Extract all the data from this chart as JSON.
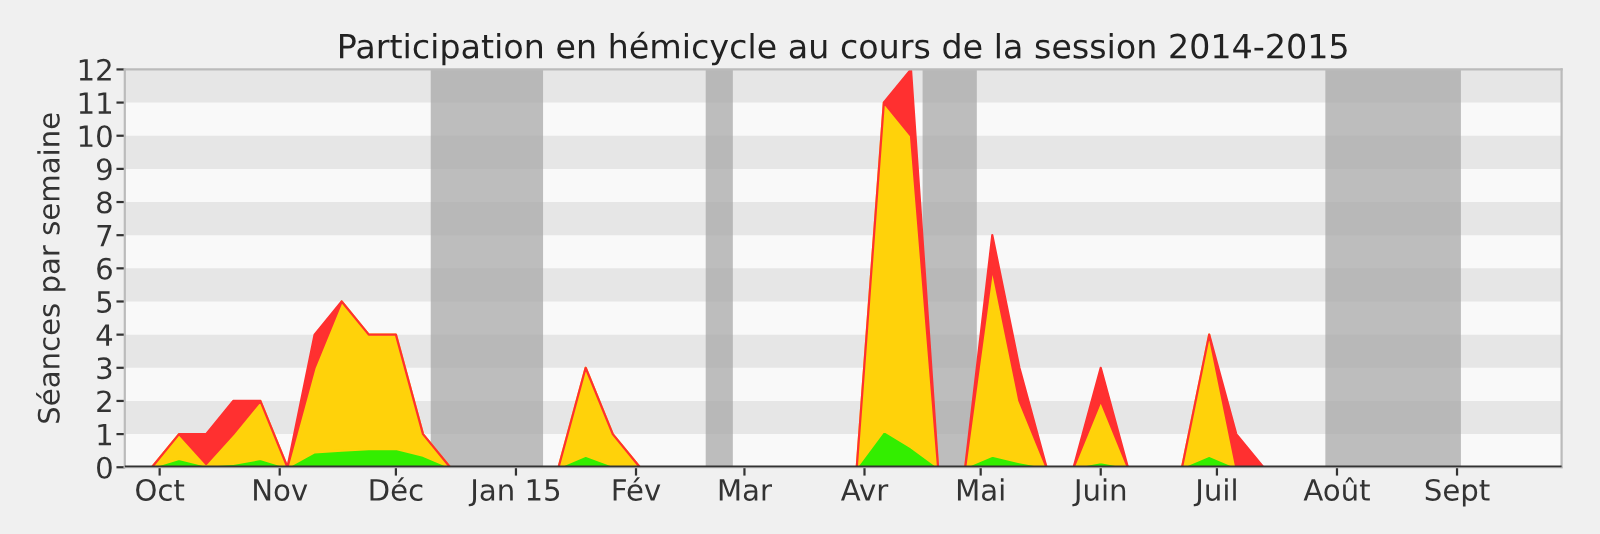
{
  "chart_data": {
    "type": "area",
    "stacked": true,
    "title": "Participation en hémicycle au cours de la session 2014-2015",
    "ylabel": "Séances par semaine",
    "x": [
      "2014-09-22",
      "2014-09-29",
      "2014-10-06",
      "2014-10-13",
      "2014-10-20",
      "2014-10-27",
      "2014-11-03",
      "2014-11-10",
      "2014-11-17",
      "2014-11-24",
      "2014-12-01",
      "2014-12-08",
      "2014-12-15",
      "2014-12-22",
      "2014-12-29",
      "2015-01-05",
      "2015-01-12",
      "2015-01-19",
      "2015-01-26",
      "2015-02-02",
      "2015-02-09",
      "2015-02-16",
      "2015-02-23",
      "2015-03-02",
      "2015-03-09",
      "2015-03-16",
      "2015-03-23",
      "2015-03-30",
      "2015-04-06",
      "2015-04-13",
      "2015-04-20",
      "2015-04-27",
      "2015-05-04",
      "2015-05-11",
      "2015-05-18",
      "2015-05-25",
      "2015-06-01",
      "2015-06-08",
      "2015-06-15",
      "2015-06-22",
      "2015-06-29",
      "2015-07-06",
      "2015-07-13",
      "2015-07-20",
      "2015-07-27",
      "2015-08-03",
      "2015-08-10",
      "2015-08-17",
      "2015-08-24",
      "2015-08-31",
      "2015-09-07",
      "2015-09-14",
      "2015-09-21"
    ],
    "series": [
      {
        "color": "#33ee00",
        "values": [
          0,
          0,
          0.25,
          0.05,
          0.1,
          0.25,
          0,
          0.45,
          0.5,
          0.55,
          0.55,
          0.35,
          0,
          0,
          0,
          0,
          0,
          0.35,
          0.05,
          0,
          0,
          0,
          0,
          0,
          0,
          0,
          0,
          0,
          1.1,
          0.6,
          0,
          0,
          0.35,
          0.15,
          0,
          0,
          0.15,
          0,
          0,
          0,
          0.35,
          0,
          0,
          0,
          0,
          0,
          0,
          0,
          0,
          0,
          0,
          0,
          0
        ]
      },
      {
        "color": "#ffd20a",
        "values": [
          0,
          0,
          0.75,
          0.05,
          0.9,
          1.75,
          0,
          2.55,
          4.5,
          3.45,
          3.45,
          0.65,
          0,
          0,
          0,
          0,
          0,
          2.65,
          0.95,
          0,
          0,
          0,
          0,
          0,
          0,
          0,
          0,
          0,
          9.9,
          9.4,
          0,
          0,
          5.65,
          1.85,
          0,
          0,
          1.85,
          0,
          0,
          0,
          3.65,
          0,
          0,
          0,
          0,
          0,
          0,
          0,
          0,
          0,
          0,
          0,
          0
        ]
      },
      {
        "color": "#ff3030",
        "values": [
          0,
          0,
          0,
          0.9,
          1,
          0,
          0,
          1,
          0,
          0,
          0,
          0,
          0,
          0,
          0,
          0,
          0,
          0,
          0,
          0,
          0,
          0,
          0,
          0,
          0,
          0,
          0,
          0,
          0,
          2,
          0,
          0,
          1,
          1,
          0,
          0,
          1,
          0,
          0,
          0,
          0,
          1,
          0,
          0,
          0,
          0,
          0,
          0,
          0,
          0,
          0,
          0,
          0
        ]
      }
    ],
    "xlim": [
      "2014-09-22",
      "2015-09-28"
    ],
    "xticks": [
      {
        "value": "2014-10-01",
        "label": "Oct"
      },
      {
        "value": "2014-11-01",
        "label": "Nov"
      },
      {
        "value": "2014-12-01",
        "label": "Déc"
      },
      {
        "value": "2015-01-01",
        "label": "Jan 15"
      },
      {
        "value": "2015-02-01",
        "label": "Fév"
      },
      {
        "value": "2015-03-01",
        "label": "Mar"
      },
      {
        "value": "2015-04-01",
        "label": "Avr"
      },
      {
        "value": "2015-05-01",
        "label": "Mai"
      },
      {
        "value": "2015-06-01",
        "label": "Juin"
      },
      {
        "value": "2015-07-01",
        "label": "Juil"
      },
      {
        "value": "2015-08-01",
        "label": "Août"
      },
      {
        "value": "2015-09-01",
        "label": "Sept"
      }
    ],
    "ylim": [
      0,
      12
    ],
    "yticks": [
      0,
      1,
      2,
      3,
      4,
      5,
      6,
      7,
      8,
      9,
      10,
      11,
      12
    ],
    "bands": [
      {
        "axis": "x",
        "from": "2014-12-10",
        "to": "2015-01-08",
        "color": "#a8a8a8"
      },
      {
        "axis": "x",
        "from": "2015-02-19",
        "to": "2015-02-26",
        "color": "#a8a8a8"
      },
      {
        "axis": "x",
        "from": "2015-04-16",
        "to": "2015-04-30",
        "color": "#a8a8a8"
      },
      {
        "axis": "x",
        "from": "2015-07-29",
        "to": "2015-09-02",
        "color": "#a8a8a8"
      }
    ]
  }
}
